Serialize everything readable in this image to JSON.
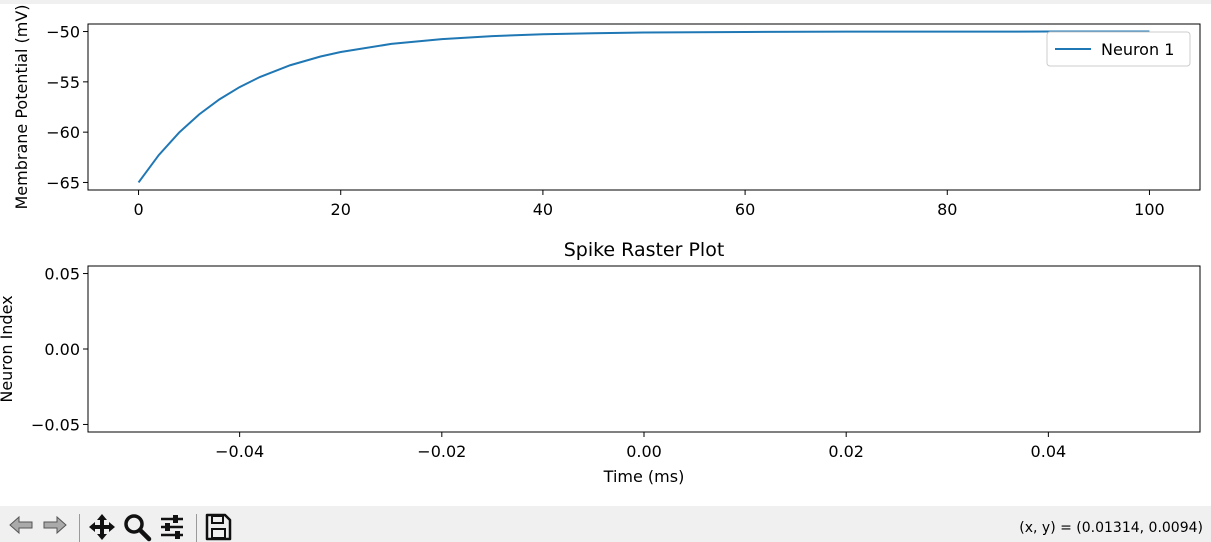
{
  "chart_data": [
    {
      "type": "line",
      "title": "",
      "xlabel": "",
      "ylabel": "Membrane Potential (mV)",
      "xlim": [
        -5,
        105
      ],
      "ylim": [
        -65.75,
        -49.25
      ],
      "xticks": [
        0,
        20,
        40,
        60,
        80,
        100
      ],
      "yticks": [
        -65,
        -60,
        -55,
        -50
      ],
      "xtick_labels": [
        "0",
        "20",
        "40",
        "60",
        "80",
        "100"
      ],
      "ytick_labels": [
        "−65",
        "−60",
        "−55",
        "−50"
      ],
      "legend": "top-right",
      "grid": false,
      "series": [
        {
          "name": "Neuron 1",
          "color": "#1f77b4",
          "x": [
            0,
            2,
            4,
            6,
            8,
            10,
            12,
            15,
            18,
            20,
            25,
            30,
            35,
            40,
            45,
            50,
            60,
            70,
            80,
            90,
            100
          ],
          "values": [
            -65,
            -62.28,
            -60.05,
            -58.23,
            -56.74,
            -55.52,
            -54.52,
            -53.35,
            -52.48,
            -52.03,
            -51.23,
            -50.75,
            -50.45,
            -50.27,
            -50.17,
            -50.1,
            -50.04,
            -50.01,
            -50.01,
            -50.0,
            -50.0
          ]
        }
      ]
    },
    {
      "type": "scatter",
      "title": "Spike Raster Plot",
      "xlabel": "Time (ms)",
      "ylabel": "Neuron Index",
      "xlim": [
        -0.055,
        0.055
      ],
      "ylim": [
        -0.055,
        0.055
      ],
      "xticks": [
        -0.04,
        -0.02,
        0.0,
        0.02,
        0.04
      ],
      "yticks": [
        -0.05,
        0.0,
        0.05
      ],
      "xtick_labels": [
        "−0.04",
        "−0.02",
        "0.00",
        "0.02",
        "0.04"
      ],
      "ytick_labels": [
        "−0.05",
        "0.00",
        "0.05"
      ],
      "grid": false,
      "series": []
    }
  ],
  "toolbar": {
    "coords_text": "(x, y) = (0.01314, 0.0094)"
  }
}
